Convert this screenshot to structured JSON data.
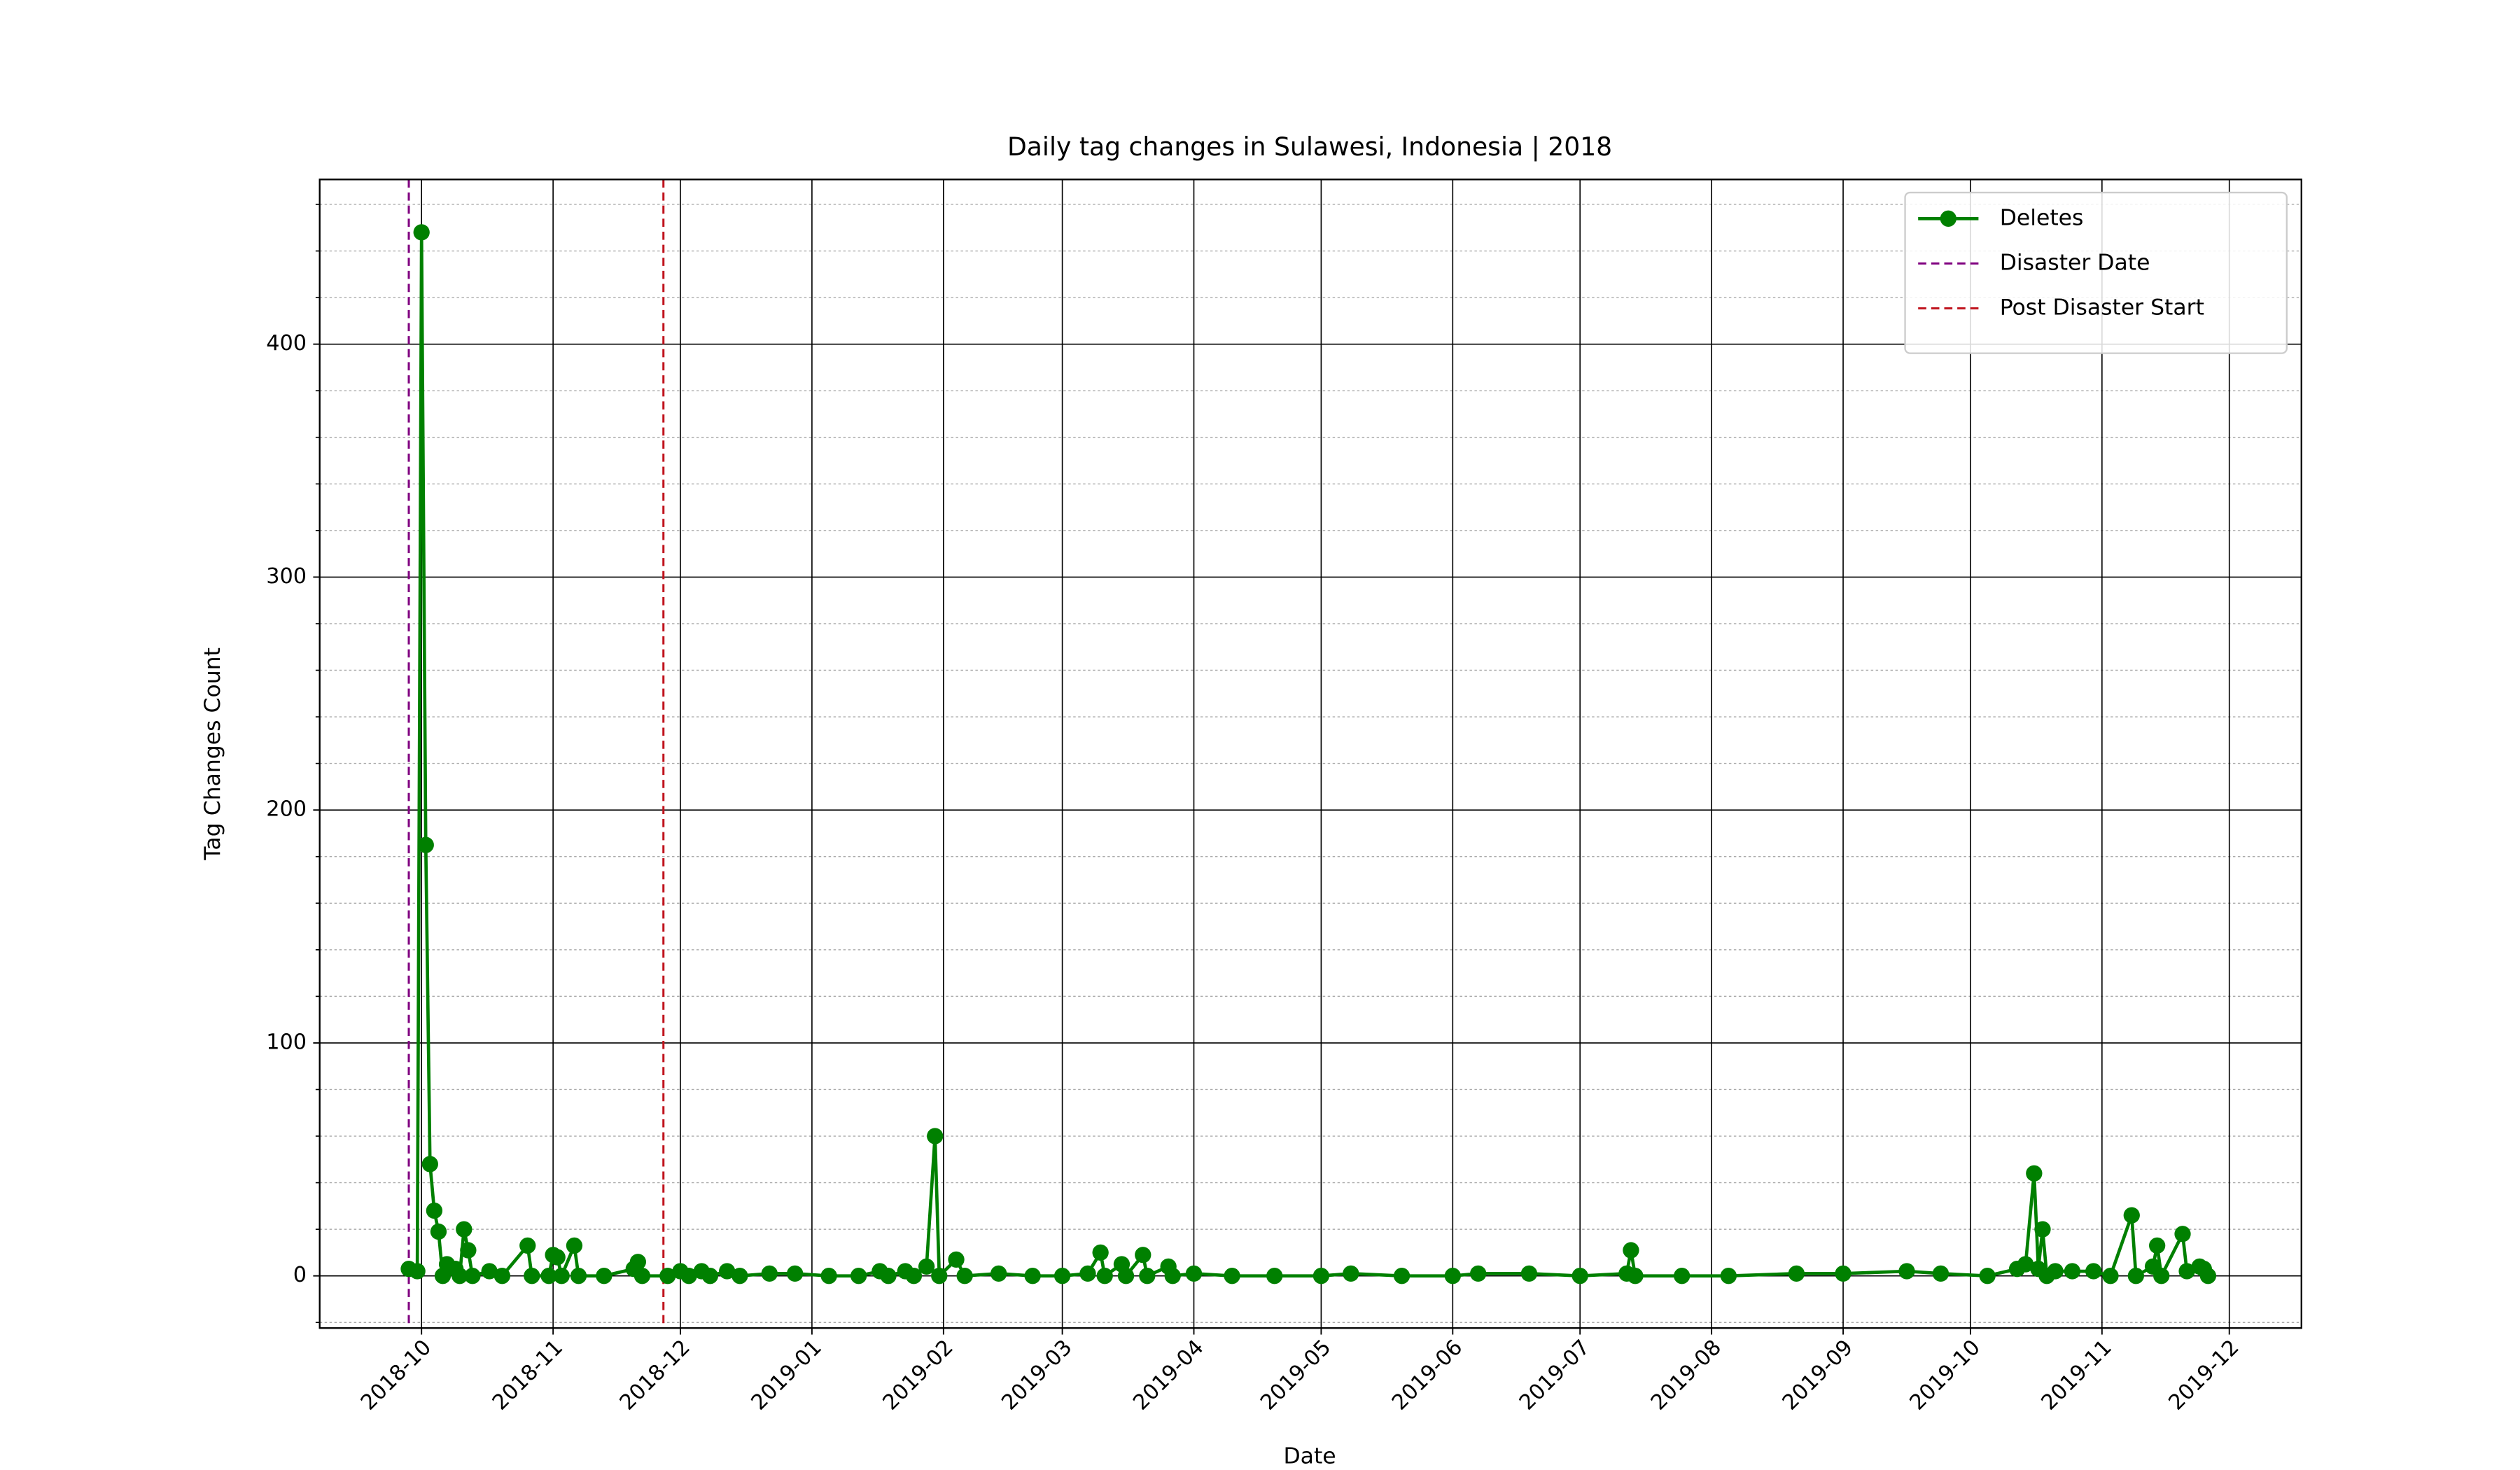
{
  "chart_data": {
    "type": "line",
    "title": "Daily tag changes in Sulawesi, Indonesia | 2018",
    "x_label": "Date",
    "y_label": "Tag Changes Count",
    "x": [
      "2018-09-28",
      "2018-09-30",
      "2018-10-01",
      "2018-10-02",
      "2018-10-03",
      "2018-10-04",
      "2018-10-05",
      "2018-10-06",
      "2018-10-07",
      "2018-10-09",
      "2018-10-10",
      "2018-10-11",
      "2018-10-12",
      "2018-10-13",
      "2018-10-17",
      "2018-10-20",
      "2018-10-26",
      "2018-10-27",
      "2018-10-31",
      "2018-11-01",
      "2018-11-02",
      "2018-11-03",
      "2018-11-06",
      "2018-11-07",
      "2018-11-13",
      "2018-11-20",
      "2018-11-21",
      "2018-11-22",
      "2018-11-28",
      "2018-12-01",
      "2018-12-03",
      "2018-12-06",
      "2018-12-08",
      "2018-12-12",
      "2018-12-15",
      "2018-12-22",
      "2018-12-28",
      "2019-01-05",
      "2019-01-12",
      "2019-01-17",
      "2019-01-19",
      "2019-01-23",
      "2019-01-25",
      "2019-01-28",
      "2019-01-30",
      "2019-01-31",
      "2019-02-04",
      "2019-02-06",
      "2019-02-14",
      "2019-02-22",
      "2019-03-01",
      "2019-03-07",
      "2019-03-10",
      "2019-03-11",
      "2019-03-15",
      "2019-03-16",
      "2019-03-20",
      "2019-03-21",
      "2019-03-26",
      "2019-03-27",
      "2019-04-01",
      "2019-04-10",
      "2019-04-20",
      "2019-05-01",
      "2019-05-08",
      "2019-05-20",
      "2019-06-01",
      "2019-06-07",
      "2019-06-19",
      "2019-07-01",
      "2019-07-12",
      "2019-07-13",
      "2019-07-14",
      "2019-07-25",
      "2019-08-05",
      "2019-08-21",
      "2019-09-01",
      "2019-09-16",
      "2019-09-24",
      "2019-10-05",
      "2019-10-12",
      "2019-10-14",
      "2019-10-16",
      "2019-10-17",
      "2019-10-18",
      "2019-10-19",
      "2019-10-21",
      "2019-10-25",
      "2019-10-30",
      "2019-11-03",
      "2019-11-08",
      "2019-11-09",
      "2019-11-13",
      "2019-11-14",
      "2019-11-15",
      "2019-11-20",
      "2019-11-21",
      "2019-11-24",
      "2019-11-25",
      "2019-11-26"
    ],
    "series": [
      {
        "name": "Deletes",
        "color": "#008000",
        "values": [
          3,
          2,
          448,
          185,
          48,
          28,
          19,
          0,
          5,
          3,
          0,
          20,
          11,
          0,
          2,
          0,
          13,
          0,
          0,
          9,
          8,
          0,
          13,
          0,
          0,
          3,
          6,
          0,
          0,
          2,
          0,
          2,
          0,
          2,
          0,
          1,
          1,
          0,
          0,
          2,
          0,
          2,
          0,
          4,
          60,
          0,
          7,
          0,
          1,
          0,
          0,
          1,
          10,
          0,
          5,
          0,
          9,
          0,
          4,
          0,
          1,
          0,
          0,
          0,
          1,
          0,
          0,
          1,
          1,
          0,
          1,
          11,
          0,
          0,
          0,
          1,
          1,
          2,
          1,
          0,
          3,
          5,
          44,
          3,
          20,
          0,
          2,
          2,
          2,
          0,
          26,
          0,
          4,
          13,
          0,
          18,
          2,
          4,
          3,
          0
        ]
      }
    ],
    "vlines": [
      {
        "name": "Disaster Date",
        "x": "2018-09-28",
        "color": "#800080"
      },
      {
        "name": "Post Disaster Start",
        "x": "2018-11-27",
        "color": "#c0141e"
      }
    ],
    "xlim": [
      "2018-09-07",
      "2019-12-18"
    ],
    "xticks": [
      {
        "value": "2018-10-01",
        "label": "2018-10"
      },
      {
        "value": "2018-11-01",
        "label": "2018-11"
      },
      {
        "value": "2018-12-01",
        "label": "2018-12"
      },
      {
        "value": "2019-01-01",
        "label": "2019-01"
      },
      {
        "value": "2019-02-01",
        "label": "2019-02"
      },
      {
        "value": "2019-03-01",
        "label": "2019-03"
      },
      {
        "value": "2019-04-01",
        "label": "2019-04"
      },
      {
        "value": "2019-05-01",
        "label": "2019-05"
      },
      {
        "value": "2019-06-01",
        "label": "2019-06"
      },
      {
        "value": "2019-07-01",
        "label": "2019-07"
      },
      {
        "value": "2019-08-01",
        "label": "2019-08"
      },
      {
        "value": "2019-09-01",
        "label": "2019-09"
      },
      {
        "value": "2019-10-01",
        "label": "2019-10"
      },
      {
        "value": "2019-11-01",
        "label": "2019-11"
      },
      {
        "value": "2019-12-01",
        "label": "2019-12"
      }
    ],
    "ylim": [
      -22.4,
      470.7
    ],
    "yticks": [
      0,
      100,
      200,
      300,
      400
    ],
    "yminorticks": [
      -20,
      20,
      40,
      60,
      80,
      120,
      140,
      160,
      180,
      220,
      240,
      260,
      280,
      320,
      340,
      360,
      380,
      420,
      440,
      460
    ],
    "grid": true,
    "legend": "upper right"
  }
}
